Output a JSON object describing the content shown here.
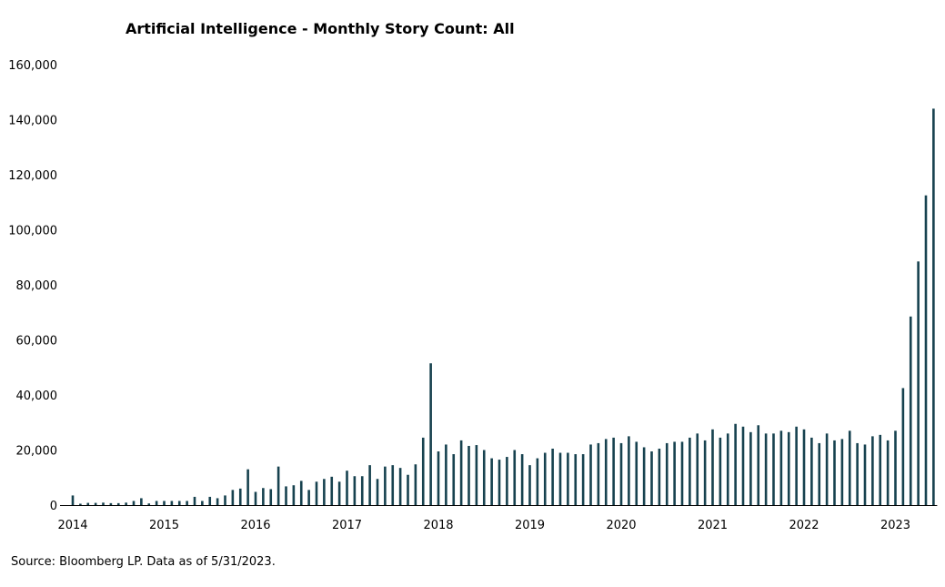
{
  "title": "Artificial Intelligence - Monthly Story Count: All",
  "source": "Source:  Bloomberg LP. Data as of 5/31/2023.",
  "colors": {
    "bar": "#17424f",
    "axis": "#000000"
  },
  "chart_data": {
    "type": "bar",
    "title": "Artificial Intelligence - Monthly Story Count: All",
    "xlabel": "",
    "ylabel": "",
    "ylim": [
      0,
      160000
    ],
    "yticks": [
      0,
      20000,
      40000,
      60000,
      80000,
      100000,
      120000,
      140000,
      160000
    ],
    "ytick_labels": [
      "0",
      "20,000",
      "40,000",
      "60,000",
      "80,000",
      "100,000",
      "120,000",
      "140,000",
      "160,000"
    ],
    "xtick_labels": [
      "2014",
      "2015",
      "2016",
      "2017",
      "2018",
      "2019",
      "2020",
      "2021",
      "2022",
      "2023"
    ],
    "grid": false,
    "legend": "none",
    "start_month": "2014-01",
    "values": [
      3500,
      500,
      800,
      800,
      900,
      700,
      700,
      900,
      1500,
      2500,
      600,
      1500,
      1500,
      1500,
      1500,
      1500,
      3000,
      1500,
      3000,
      2500,
      3500,
      5500,
      6000,
      13000,
      4800,
      6200,
      5800,
      14000,
      6800,
      7200,
      8800,
      5500,
      8500,
      9500,
      10300,
      8500,
      12500,
      10500,
      10500,
      14500,
      9500,
      14000,
      14500,
      13500,
      11000,
      14800,
      24500,
      51500,
      19500,
      22000,
      18500,
      23500,
      21500,
      21800,
      20000,
      17000,
      16500,
      17500,
      20000,
      18500,
      14500,
      17000,
      19000,
      20500,
      19000,
      19000,
      18500,
      18500,
      22000,
      22500,
      24000,
      24500,
      22500,
      25000,
      23000,
      21000,
      19500,
      20500,
      22500,
      23000,
      23000,
      24500,
      26000,
      23500,
      27500,
      24500,
      26000,
      29500,
      28500,
      26500,
      29000,
      26000,
      26000,
      27000,
      26500,
      28500,
      27500,
      24500,
      22500,
      26000,
      23500,
      24000,
      27000,
      22500,
      22000,
      25000,
      25500,
      23500,
      27000,
      42500,
      68500,
      88500,
      112500,
      144000
    ]
  }
}
